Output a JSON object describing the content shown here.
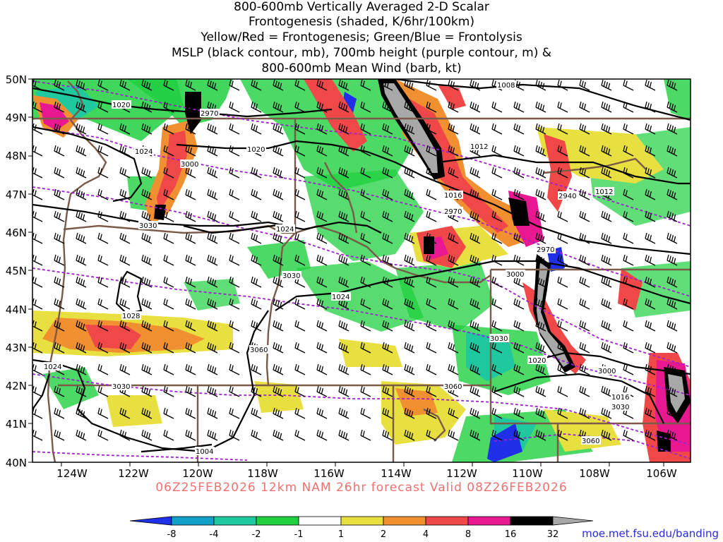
{
  "title": {
    "lines": [
      "800-600mb Vertically Averaged 2-D Scalar",
      "Frontogenesis (shaded, K/6hr/100km)",
      "Yellow/Red = Frontogenesis;  Green/Blue = Frontolysis",
      "MSLP (black contour, mb), 700mb height (purple contour, m) &",
      "800-600mb Mean Wind (barb, kt)"
    ]
  },
  "axes": {
    "longitude_labels": [
      "124W",
      "122W",
      "120W",
      "118W",
      "116W",
      "114W",
      "112W",
      "110W",
      "108W",
      "106W"
    ],
    "latitude_labels": [
      "50N",
      "49N",
      "48N",
      "47N",
      "46N",
      "45N",
      "44N",
      "43N",
      "42N",
      "41N",
      "40N"
    ]
  },
  "contour_labels": {
    "mslp": [
      "1020",
      "1024",
      "1020",
      "1008",
      "1012",
      "1016",
      "1012",
      "1024",
      "1024",
      "1028",
      "1024",
      "1020",
      "1016",
      "1004"
    ],
    "height": [
      "2970",
      "3000",
      "3030",
      "2970",
      "2940",
      "2970",
      "3000",
      "3030",
      "3030",
      "3060",
      "3030",
      "3060",
      "3000",
      "3030",
      "3060"
    ]
  },
  "colorbar": {
    "ticks": [
      "-8",
      "-4",
      "-2",
      "-1",
      "1",
      "2",
      "4",
      "8",
      "16",
      "32"
    ],
    "colors": [
      "#2030e8",
      "#10a0c8",
      "#20c8a0",
      "#20d040",
      "#ffffff",
      "#e8e040",
      "#f09030",
      "#f04848",
      "#e81890",
      "#000000",
      "#a8a8a8"
    ]
  },
  "footer": "06Z25FEB2026 12km NAM 26hr forecast Valid 08Z26FEB2026",
  "credit": "moe.met.fsu.edu/banding"
}
